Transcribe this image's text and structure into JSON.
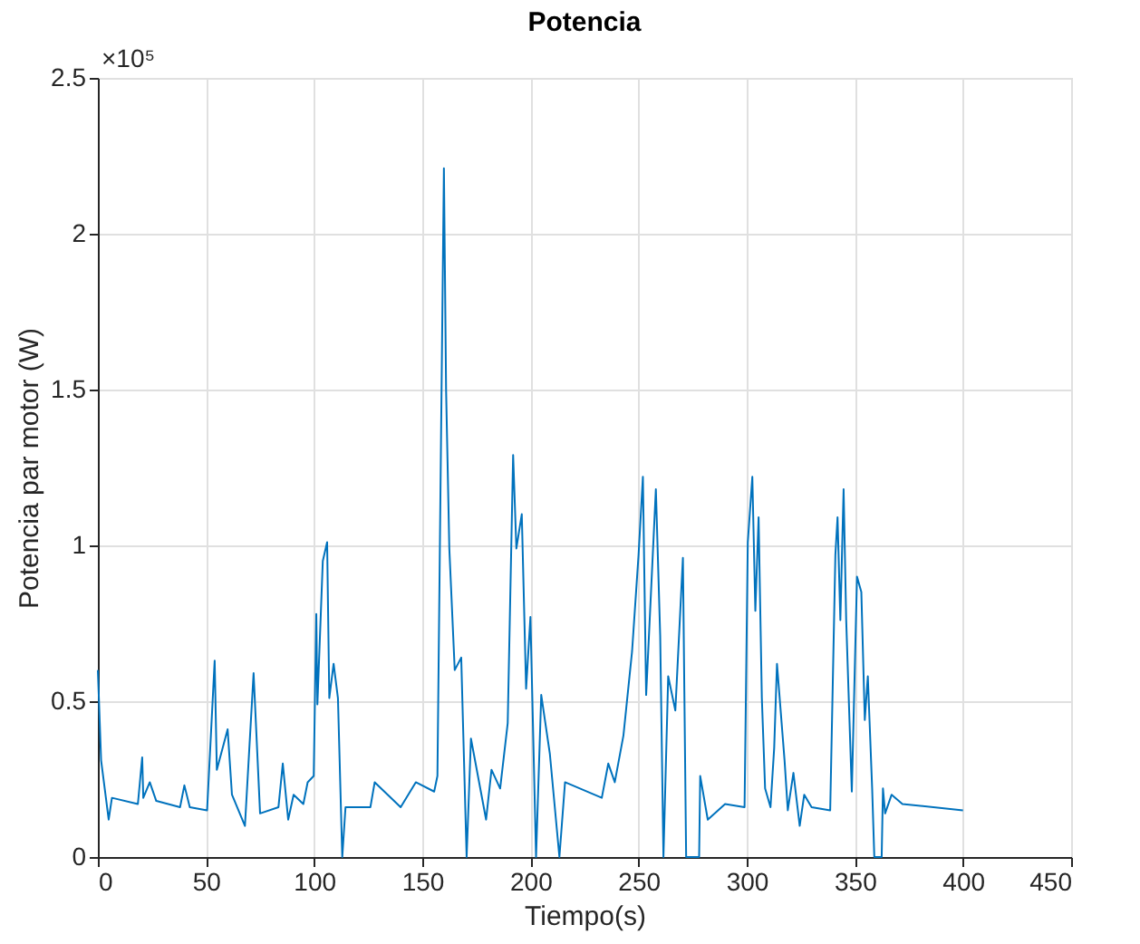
{
  "chart_data": {
    "type": "line",
    "title": "Potencia",
    "xlabel": "Tiempo(s)",
    "ylabel": "Potencia par motor (W)",
    "annotations": [
      "×10⁵"
    ],
    "x": [
      0,
      1.5,
      5,
      6.5,
      18.5,
      20.5,
      21,
      24,
      27,
      38,
      40,
      42.5,
      50.5,
      54,
      55,
      60,
      62,
      68,
      72,
      75,
      83.5,
      85.5,
      88,
      90.5,
      95,
      97,
      99.8,
      101,
      101.5,
      104,
      106,
      107,
      109,
      111,
      113,
      114.5,
      126,
      128,
      140,
      147,
      155.5,
      157,
      160,
      161,
      162.5,
      165,
      168,
      170.5,
      172.5,
      179.5,
      182,
      186,
      189.5,
      192,
      193.5,
      196,
      198,
      200,
      202.6,
      205,
      209,
      213.4,
      216,
      233,
      236,
      239,
      243,
      247,
      250,
      252,
      253.5,
      258,
      260,
      261.5,
      263.7,
      267,
      270.5,
      272,
      278,
      278.5,
      282,
      290,
      299,
      300.5,
      302.6,
      304,
      305.5,
      307,
      308.5,
      311,
      312.7,
      314,
      317.5,
      319,
      321.6,
      324.5,
      326.6,
      330,
      338.6,
      341,
      342,
      343.3,
      344.8,
      346,
      348.6,
      351,
      353,
      354.6,
      356,
      358,
      359,
      362.4,
      363,
      364,
      367,
      372,
      400
    ],
    "series": [
      {
        "color": "#0072bd",
        "values": [
          0.6,
          0.31,
          0.12,
          0.19,
          0.17,
          0.32,
          0.19,
          0.24,
          0.18,
          0.16,
          0.23,
          0.16,
          0.15,
          0.63,
          0.28,
          0.41,
          0.2,
          0.1,
          0.59,
          0.14,
          0.16,
          0.3,
          0.12,
          0.2,
          0.17,
          0.24,
          0.26,
          0.78,
          0.49,
          0.95,
          1.01,
          0.51,
          0.62,
          0.51,
          0,
          0.16,
          0.16,
          0.24,
          0.16,
          0.24,
          0.21,
          0.26,
          2.21,
          1.5,
          0.99,
          0.6,
          0.64,
          0,
          0.38,
          0.12,
          0.28,
          0.22,
          0.43,
          1.29,
          0.99,
          1.1,
          0.54,
          0.77,
          0,
          0.52,
          0.33,
          0,
          0.24,
          0.19,
          0.3,
          0.24,
          0.39,
          0.66,
          0.97,
          1.22,
          0.52,
          1.18,
          0.71,
          0,
          0.58,
          0.47,
          0.96,
          0,
          0,
          0.26,
          0.12,
          0.17,
          0.16,
          1.01,
          1.22,
          0.79,
          1.09,
          0.51,
          0.22,
          0.16,
          0.35,
          0.62,
          0.31,
          0.15,
          0.27,
          0.1,
          0.2,
          0.16,
          0.15,
          0.97,
          1.09,
          0.76,
          1.18,
          0.76,
          0.21,
          0.9,
          0.85,
          0.44,
          0.58,
          0.22,
          0,
          0,
          0.22,
          0.14,
          0.2,
          0.17,
          0.15
        ]
      }
    ],
    "xlim": [
      0,
      450
    ],
    "xticks": [
      0,
      50,
      100,
      150,
      200,
      250,
      300,
      350,
      400,
      450
    ],
    "ylim": [
      0,
      2.5
    ],
    "yticks": [
      0,
      0.5,
      1,
      1.5,
      2,
      2.5
    ],
    "grid": true,
    "marker": "none",
    "line_style": "solid"
  }
}
